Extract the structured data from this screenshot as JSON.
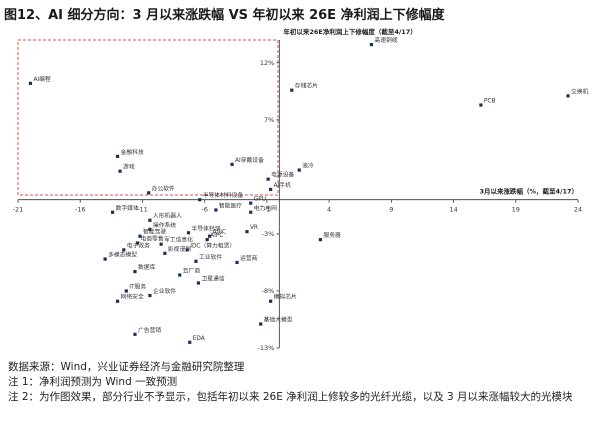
{
  "chart_data": {
    "type": "scatter",
    "title": "图12、AI 细分方向：3 月以来涨跌幅 VS 年初以来 26E 净利润上下修幅度",
    "x_label": "3月以来涨跌幅（%，截至4/17）",
    "y_label": "年初以来26E净利润上下修幅度（截至4/17）",
    "color": "#1f2d5a",
    "xlim": [
      -21,
      24
    ],
    "xticks": [
      -21,
      -16,
      -11,
      -6,
      -1,
      4,
      9,
      14,
      19,
      24
    ],
    "ylim": [
      -13,
      14
    ],
    "yticks": [
      {
        "value": 12,
        "label": "12%"
      },
      {
        "value": 7,
        "label": "7%"
      },
      {
        "value": -3,
        "label": "-3%"
      },
      {
        "value": -8,
        "label": "-8%"
      },
      {
        "value": -13,
        "label": "-13%"
      }
    ],
    "points": [
      {
        "label": "AI编程",
        "x": -20.0,
        "y": 10.2
      },
      {
        "label": "存储芯片",
        "x": 1.0,
        "y": 9.6
      },
      {
        "label": "PCB",
        "x": 16.2,
        "y": 8.3
      },
      {
        "label": "交换机",
        "x": 23.2,
        "y": 9.1
      },
      {
        "label": "高速铜缆",
        "x": 7.4,
        "y": 13.6
      },
      {
        "label": "金融科技",
        "x": -13.0,
        "y": 3.8
      },
      {
        "label": "游戏",
        "x": -12.8,
        "y": 2.5
      },
      {
        "label": "AI穿戴设备",
        "x": -3.8,
        "y": 3.1
      },
      {
        "label": "液冷",
        "x": 1.6,
        "y": 2.6
      },
      {
        "label": "电源设备",
        "x": -0.9,
        "y": 1.8
      },
      {
        "label": "AI手机",
        "x": -0.7,
        "y": 0.9
      },
      {
        "label": "办公软件",
        "x": -10.5,
        "y": 0.6
      },
      {
        "label": "半导体材料设备",
        "x": -6.4,
        "y": 0.0
      },
      {
        "label": "数字媒体",
        "x": -13.4,
        "y": -1.1
      },
      {
        "label": "GPU",
        "x": -2.3,
        "y": -0.3
      },
      {
        "label": "智能医疗",
        "x": -5.1,
        "y": -0.9
      },
      {
        "label": "电力电网",
        "x": -2.3,
        "y": -1.1
      },
      {
        "label": "人形机器人",
        "x": -10.4,
        "y": -1.8
      },
      {
        "label": "操作系统",
        "x": -10.4,
        "y": -2.6
      },
      {
        "label": "半导体封测",
        "x": -7.3,
        "y": -2.9
      },
      {
        "label": "智能驾驶",
        "x": -11.2,
        "y": -3.2
      },
      {
        "label": "电商零售",
        "x": -11.4,
        "y": -3.8
      },
      {
        "label": "军工信息化",
        "x": -9.5,
        "y": -3.9
      },
      {
        "label": "电子政务",
        "x": -12.5,
        "y": -4.4
      },
      {
        "label": "影视漫剧",
        "x": -9.2,
        "y": -4.7
      },
      {
        "label": "多模态模型",
        "x": -14.0,
        "y": -5.2
      },
      {
        "label": "工业软件",
        "x": -6.7,
        "y": -5.4
      },
      {
        "label": "数据库",
        "x": -11.6,
        "y": -6.3
      },
      {
        "label": "ASIC",
        "x": -5.6,
        "y": -3.2
      },
      {
        "label": "AIPC",
        "x": -5.8,
        "y": -3.5
      },
      {
        "label": "IDC（算力租赁）",
        "x": -7.4,
        "y": -4.4
      },
      {
        "label": "VR",
        "x": -2.6,
        "y": -2.8
      },
      {
        "label": "服务器",
        "x": 3.3,
        "y": -3.5
      },
      {
        "label": "运营商",
        "x": -3.4,
        "y": -5.5
      },
      {
        "label": "云厂商",
        "x": -8.0,
        "y": -6.6
      },
      {
        "label": "卫星通信",
        "x": -6.5,
        "y": -7.3
      },
      {
        "label": "IT服务",
        "x": -12.3,
        "y": -8.0
      },
      {
        "label": "企业软件",
        "x": -10.4,
        "y": -8.4
      },
      {
        "label": "网络安全",
        "x": -13.0,
        "y": -8.9
      },
      {
        "label": "模拟芯片",
        "x": -0.7,
        "y": -8.9
      },
      {
        "label": "基础大模型",
        "x": -1.5,
        "y": -10.9
      },
      {
        "label": "广告营销",
        "x": -11.6,
        "y": -11.8
      },
      {
        "label": "EDA",
        "x": -7.2,
        "y": -12.5
      }
    ],
    "notes": [
      "数据来源：Wind，兴业证券经济与金融研究院整理",
      "注 1：净利润预测为 Wind 一致预测",
      "注 2：为作图效果，部分行业不予显示，包括年初以来 26E 净利润上修较多的光纤光缆，以及 3 月以来涨幅较大的光模块"
    ]
  }
}
